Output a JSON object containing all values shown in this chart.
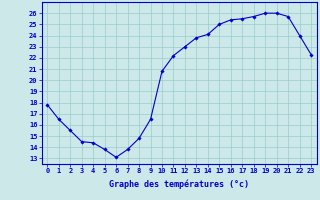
{
  "hours": [
    0,
    1,
    2,
    3,
    4,
    5,
    6,
    7,
    8,
    9,
    10,
    11,
    12,
    13,
    14,
    15,
    16,
    17,
    18,
    19,
    20,
    21,
    22,
    23
  ],
  "temps": [
    17.8,
    16.5,
    15.5,
    14.5,
    14.4,
    13.8,
    13.1,
    13.8,
    14.8,
    16.5,
    20.8,
    22.2,
    23.0,
    23.8,
    24.1,
    25.0,
    25.4,
    25.5,
    25.7,
    26.0,
    26.0,
    25.7,
    24.0,
    22.3
  ],
  "line_color": "#0000cc",
  "marker": "D",
  "markersize": 1.8,
  "linewidth": 0.8,
  "bg_color": "#cce8e8",
  "grid_color": "#99cccc",
  "xlabel": "Graphe des températures (°c)",
  "ylabel_ticks": [
    13,
    14,
    15,
    16,
    17,
    18,
    19,
    20,
    21,
    22,
    23,
    24,
    25,
    26
  ],
  "ylim": [
    12.5,
    27.0
  ],
  "xlim": [
    -0.5,
    23.5
  ],
  "tick_color": "#0000cc",
  "xlabel_color": "#0000cc",
  "axis_color": "#0000cc",
  "tick_fontsize": 5.0,
  "xlabel_fontsize": 6.0
}
